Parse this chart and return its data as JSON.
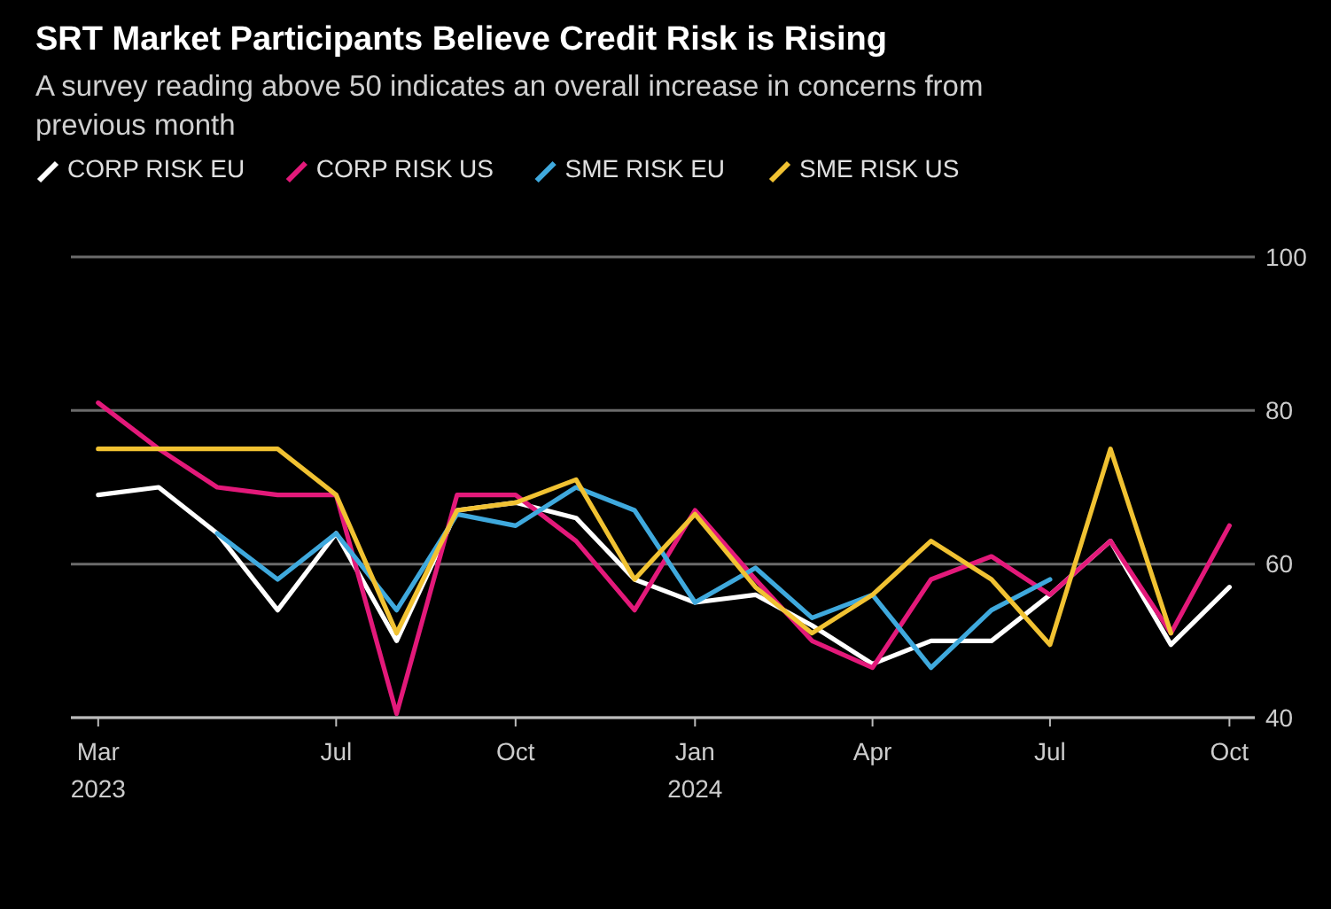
{
  "chart_data": {
    "type": "line",
    "title": "SRT Market Participants Believe Credit Risk is Rising",
    "subtitle": "A survey reading above 50 indicates an overall increase in concerns from previous month",
    "x": [
      "2023-03",
      "2023-04",
      "2023-05",
      "2023-06",
      "2023-07",
      "2023-08",
      "2023-09",
      "2023-10",
      "2023-11",
      "2023-12",
      "2024-01",
      "2024-02",
      "2024-03",
      "2024-04",
      "2024-05",
      "2024-06",
      "2024-07",
      "2024-08",
      "2024-09",
      "2024-10"
    ],
    "series": [
      {
        "name": "CORP RISK EU",
        "color": "#ffffff",
        "values": [
          69,
          70,
          64,
          54,
          64,
          50,
          67,
          68,
          66,
          58,
          55,
          56,
          52,
          47,
          50,
          50,
          56,
          63,
          49.5,
          57
        ]
      },
      {
        "name": "CORP RISK US",
        "color": "#e3197a",
        "values": [
          81,
          75,
          70,
          69,
          69,
          40.5,
          69,
          69,
          63,
          54,
          67,
          58,
          50,
          46.5,
          58,
          61,
          56,
          63,
          51,
          65
        ]
      },
      {
        "name": "SME RISK EU",
        "color": "#3fa9dd",
        "values": [
          null,
          null,
          64,
          58,
          64,
          54,
          66.5,
          65,
          70,
          67,
          55,
          59.5,
          53,
          56,
          46.5,
          54,
          58,
          null,
          null,
          null
        ]
      },
      {
        "name": "SME RISK US",
        "color": "#f1c232",
        "values": [
          75,
          75,
          75,
          75,
          69,
          51,
          67,
          68,
          71,
          58,
          66.5,
          57,
          51,
          56,
          63,
          58,
          49.5,
          75,
          51,
          null
        ]
      }
    ],
    "xlim": [
      "2023-02-15",
      "2024-10-14"
    ],
    "xticks": [
      {
        "value": "2023-03",
        "label": "Mar\n2023"
      },
      {
        "value": "2023-07",
        "label": "Jul"
      },
      {
        "value": "2023-10",
        "label": "Oct"
      },
      {
        "value": "2024-01",
        "label": "Jan\n2024"
      },
      {
        "value": "2024-04",
        "label": "Apr"
      },
      {
        "value": "2024-07",
        "label": "Jul"
      },
      {
        "value": "2024-10",
        "label": "Oct"
      }
    ],
    "ylim": [
      40,
      100
    ],
    "yticks": [
      40,
      60,
      80,
      100
    ],
    "grid": "y",
    "legend": "top left",
    "line_style": "solid",
    "marker": "none"
  }
}
